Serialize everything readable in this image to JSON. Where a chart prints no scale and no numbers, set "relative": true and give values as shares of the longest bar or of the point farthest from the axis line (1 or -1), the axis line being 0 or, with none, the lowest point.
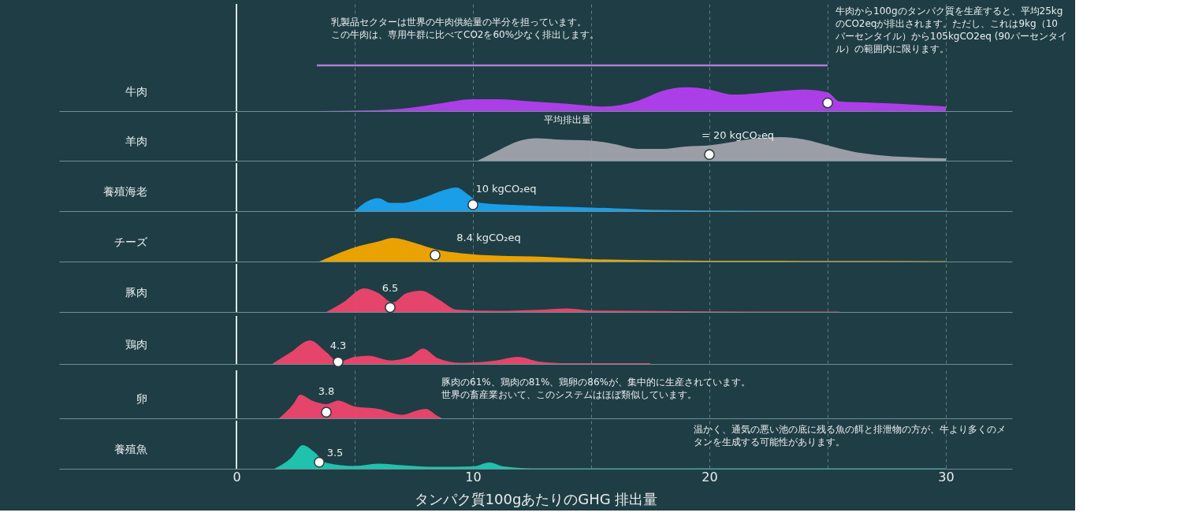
{
  "chart_data": [
    {
      "type": "area",
      "ylabel": "牛肉",
      "relative": true,
      "xlim": [
        -7.5,
        32.8
      ],
      "xticks": [
        0,
        {
          "value": 5,
          "label": null
        },
        10,
        {
          "value": 15,
          "label": null
        },
        20,
        {
          "value": 25,
          "label": null
        },
        30
      ],
      "grid": "x",
      "tick_labels": false,
      "ref_lines": [
        {
          "axis": "x",
          "value": 0,
          "color": "#dde3e3"
        }
      ],
      "series": [
        {
          "color": "#b43ef0",
          "x": [
            3.4,
            6,
            7,
            8.5,
            10,
            11,
            12.5,
            14,
            15.5,
            17,
            18,
            19,
            20,
            21,
            22,
            23,
            24,
            25,
            25.5,
            27,
            29,
            30,
            30
          ],
          "values": [
            0,
            0.02,
            0.05,
            0.16,
            0.26,
            0.26,
            0.21,
            0.16,
            0.1,
            0.23,
            0.44,
            0.52,
            0.47,
            0.36,
            0.39,
            0.44,
            0.47,
            0.41,
            0.21,
            0.18,
            0.13,
            0.1,
            0
          ]
        },
        {
          "type": "scatter",
          "marker": "circle",
          "color": "#ffffff",
          "x": [
            25
          ],
          "values": [
            0.18
          ]
        },
        {
          "type": "line",
          "color": "#b07cd8",
          "x": [
            3.4,
            25
          ],
          "values": [
            1,
            1
          ]
        }
      ],
      "annotations": [
        "乳製品セクターは世界の牛肉供給量の半分を担っています。この牛肉は、専用牛群に比べてCO2を60%少なく排出します。",
        "牛肉から100gのタンパク質を生産すると、平均25kgのCO2eqが排出されます。ただし、これは9kg（10パーセンタイル）から105kgCO2eq (90パーセンタイル）の範囲内に限ります。"
      ]
    },
    {
      "type": "area",
      "ylabel": "羊肉",
      "relative": true,
      "xlim": [
        -7.5,
        32.8
      ],
      "xticks": [
        0,
        {
          "value": 5,
          "label": null
        },
        10,
        {
          "value": 15,
          "label": null
        },
        20,
        {
          "value": 25,
          "label": null
        },
        30
      ],
      "grid": "x",
      "tick_labels": false,
      "ref_lines": [
        {
          "axis": "x",
          "value": 0,
          "color": "#dde3e3"
        }
      ],
      "series": [
        {
          "color": "#a3a3ad",
          "x": [
            10.2,
            11,
            12,
            12.7,
            13.5,
            15,
            16,
            17,
            18,
            19,
            20,
            21,
            22,
            23,
            24,
            25,
            26,
            27,
            28.5,
            30,
            30
          ],
          "values": [
            0,
            0.4,
            0.85,
            0.95,
            0.9,
            0.85,
            0.7,
            0.5,
            0.5,
            0.6,
            0.65,
            0.8,
            0.95,
            1,
            0.9,
            0.65,
            0.4,
            0.25,
            0.15,
            0.1,
            0
          ]
        },
        {
          "type": "scatter",
          "marker": "circle",
          "color": "#ffffff",
          "x": [
            20
          ],
          "values": [
            0.26
          ]
        }
      ],
      "annotations": [
        "平均排出量",
        {
          "text": "= 20 kgCO₂eq",
          "x": 20,
          "y": 0.26
        }
      ]
    },
    {
      "type": "area",
      "ylabel": "養殖海老",
      "relative": true,
      "xlim": [
        -7.5,
        32.8
      ],
      "xticks": [
        0,
        {
          "value": 5,
          "label": null
        },
        10,
        {
          "value": 15,
          "label": null
        },
        20,
        {
          "value": 25,
          "label": null
        },
        30
      ],
      "grid": "x",
      "tick_labels": false,
      "ref_lines": [
        {
          "axis": "x",
          "value": 0,
          "color": "#dde3e3"
        }
      ],
      "series": [
        {
          "color": "#1aa3f0",
          "x": [
            5,
            5.5,
            6,
            6.5,
            7,
            8,
            8.8,
            9.3,
            9.8,
            10.3,
            12,
            14,
            16,
            18,
            22,
            30,
            30
          ],
          "values": [
            0,
            0.4,
            0.55,
            0.35,
            0.35,
            0.6,
            0.9,
            1,
            0.7,
            0.35,
            0.25,
            0.18,
            0.12,
            0.05,
            0.02,
            0.02,
            0
          ]
        },
        {
          "type": "scatter",
          "marker": "circle",
          "color": "#ffffff",
          "x": [
            10
          ],
          "values": [
            0.27
          ]
        }
      ],
      "annotations": [
        {
          "text": "10 kgCO₂eq",
          "x": 10,
          "y": 0.27
        }
      ]
    },
    {
      "type": "area",
      "ylabel": "チーズ",
      "relative": true,
      "xlim": [
        -7.5,
        32.8
      ],
      "xticks": [
        0,
        {
          "value": 5,
          "label": null
        },
        10,
        {
          "value": 15,
          "label": null
        },
        20,
        {
          "value": 25,
          "label": null
        },
        30
      ],
      "grid": "x",
      "tick_labels": false,
      "ref_lines": [
        {
          "axis": "x",
          "value": 0,
          "color": "#dde3e3"
        }
      ],
      "series": [
        {
          "color": "#f5a800",
          "x": [
            3.5,
            4.2,
            5,
            6,
            6.6,
            7.5,
            8.5,
            9.5,
            11,
            13,
            15,
            18,
            22,
            30,
            30
          ],
          "values": [
            0,
            0.3,
            0.6,
            0.85,
            1,
            0.8,
            0.5,
            0.35,
            0.25,
            0.2,
            0.1,
            0.05,
            0.03,
            0.02,
            0
          ]
        },
        {
          "type": "scatter",
          "marker": "circle",
          "color": "#ffffff",
          "x": [
            8.4
          ],
          "values": [
            0.27
          ]
        }
      ],
      "annotations": [
        {
          "text": "8.4 kgCO₂eq",
          "x": 8.4,
          "y": 0.27
        }
      ]
    },
    {
      "type": "area",
      "ylabel": "豚肉",
      "relative": true,
      "xlim": [
        -7.5,
        32.8
      ],
      "xticks": [
        0,
        {
          "value": 5,
          "label": null
        },
        10,
        {
          "value": 15,
          "label": null
        },
        20,
        {
          "value": 25,
          "label": null
        },
        30
      ],
      "grid": "x",
      "tick_labels": false,
      "ref_lines": [
        {
          "axis": "x",
          "value": 0,
          "color": "#dde3e3"
        }
      ],
      "series": [
        {
          "color": "#f0446e",
          "x": [
            3.8,
            4.5,
            5.4,
            6,
            6.6,
            7.2,
            7.8,
            8.6,
            9.3,
            11,
            13,
            14,
            15,
            18,
            22,
            25.5,
            25.5
          ],
          "values": [
            0,
            0.4,
            1,
            0.8,
            0.4,
            0.8,
            0.9,
            0.5,
            0.1,
            0.05,
            0.1,
            0.15,
            0.06,
            0.04,
            0.02,
            0.02,
            0
          ]
        },
        {
          "type": "scatter",
          "marker": "circle",
          "color": "#ffffff",
          "x": [
            6.5
          ],
          "values": [
            0.19
          ]
        }
      ],
      "annotations": [
        {
          "text": "6.5",
          "x": 6.5,
          "y": 0.19
        }
      ]
    },
    {
      "type": "area",
      "ylabel": "鶏肉",
      "relative": true,
      "xlim": [
        -7.5,
        32.8
      ],
      "xticks": [
        0,
        {
          "value": 5,
          "label": null
        },
        10,
        {
          "value": 15,
          "label": null
        },
        20,
        {
          "value": 25,
          "label": null
        },
        30
      ],
      "grid": "x",
      "tick_labels": false,
      "ref_lines": [
        {
          "axis": "x",
          "value": 0,
          "color": "#dde3e3"
        }
      ],
      "series": [
        {
          "color": "#f0446e",
          "x": [
            1.5,
            2.3,
            3.1,
            3.8,
            4.3,
            5,
            5.6,
            6.5,
            7.3,
            7.9,
            8.5,
            9.5,
            11,
            11.9,
            12.8,
            14,
            17.5,
            17.5
          ],
          "values": [
            0,
            0.5,
            1,
            0.5,
            0.1,
            0.3,
            0.35,
            0.15,
            0.3,
            0.65,
            0.25,
            0.05,
            0.15,
            0.3,
            0.1,
            0.03,
            0.03,
            0
          ]
        },
        {
          "type": "scatter",
          "marker": "circle",
          "color": "#ffffff",
          "x": [
            4.3
          ],
          "values": [
            0.09
          ]
        }
      ],
      "annotations": [
        {
          "text": "4.3",
          "x": 4.3,
          "y": 0.09
        }
      ]
    },
    {
      "type": "area",
      "ylabel": "卵",
      "relative": true,
      "xlim": [
        -7.5,
        32.8
      ],
      "xticks": [
        0,
        {
          "value": 5,
          "label": null
        },
        10,
        {
          "value": 15,
          "label": null
        },
        20,
        {
          "value": 25,
          "label": null
        },
        30
      ],
      "grid": "x",
      "tick_labels": false,
      "ref_lines": [
        {
          "axis": "x",
          "value": 0,
          "color": "#dde3e3"
        }
      ],
      "series": [
        {
          "color": "#f0446e",
          "x": [
            1.8,
            2.4,
            2.7,
            3.2,
            3.8,
            4.3,
            5,
            6,
            7,
            7.7,
            8,
            8.5,
            8.7
          ],
          "values": [
            0,
            0.6,
            1,
            0.75,
            0.6,
            0.75,
            0.5,
            0.4,
            0.15,
            0.35,
            0.4,
            0.1,
            0
          ]
        },
        {
          "type": "scatter",
          "marker": "circle",
          "color": "#ffffff",
          "x": [
            3.8
          ],
          "values": [
            0.26
          ]
        }
      ],
      "annotations": [
        {
          "text": "3.8",
          "x": 3.8,
          "y": 0.26
        },
        "豚肉の61%、鶏肉の81%、鶏卵の86%が、集中的に生産されています。世界の畜産業おいて、このシステムはほぼ類似しています。"
      ]
    },
    {
      "type": "area",
      "ylabel": "養殖魚",
      "relative": true,
      "xlim": [
        -7.5,
        32.8
      ],
      "xticks": [
        0,
        {
          "value": 5,
          "label": null
        },
        10,
        {
          "value": 15,
          "label": null
        },
        20,
        {
          "value": 25,
          "label": null
        },
        30
      ],
      "grid": "x",
      "tick_labels": "x",
      "xlabel": "タンパク質100gあたりのGHG 排出量",
      "ref_lines": [
        {
          "axis": "x",
          "value": 0,
          "color": "#dde3e3"
        }
      ],
      "series": [
        {
          "color": "#1fc9b3",
          "x": [
            1.6,
            2.3,
            2.8,
            3.3,
            3.8,
            5,
            6,
            7,
            8.5,
            10,
            10.7,
            11.3,
            12.5,
            30,
            30
          ],
          "values": [
            0,
            0.45,
            1,
            0.7,
            0.25,
            0.12,
            0.22,
            0.15,
            0.08,
            0.1,
            0.27,
            0.1,
            0.02,
            0.02,
            0
          ]
        },
        {
          "type": "scatter",
          "marker": "circle",
          "color": "#ffffff",
          "x": [
            3.5
          ],
          "values": [
            0.28
          ]
        }
      ],
      "annotations": [
        {
          "text": "3.5",
          "x": 3.5,
          "y": 0.28
        },
        "温かく、通気の悪い池の底に残る魚の餌と排泄物の方が、牛より多くのメタンを生成する可能性があります。"
      ]
    }
  ]
}
